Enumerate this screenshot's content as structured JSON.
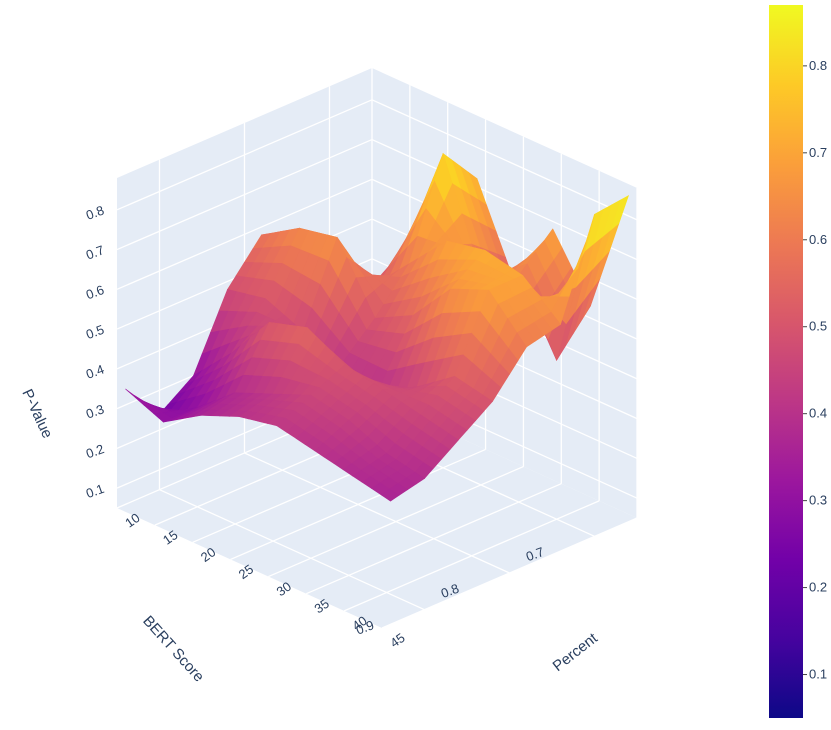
{
  "chart_data": {
    "type": "surface",
    "title": "",
    "colorscale": "plasma",
    "colorscale_stops": [
      "#0d0887",
      "#46039f",
      "#7201a8",
      "#9c179e",
      "#bd3786",
      "#d8576b",
      "#ed7953",
      "#fb9f3a",
      "#fdca26",
      "#f0f921"
    ],
    "axes": {
      "x": {
        "label": "Percent",
        "ticks": [
          "10",
          "15",
          "20",
          "25",
          "30",
          "35",
          "40",
          "45"
        ],
        "range": [
          10,
          45
        ]
      },
      "y": {
        "label": "BERT Score",
        "ticks": [
          "0.7",
          "0.8",
          "0.9"
        ],
        "range": [
          0.65,
          0.95
        ]
      },
      "z": {
        "label": "P-Value",
        "ticks": [
          "0.1",
          "0.2",
          "0.3",
          "0.4",
          "0.5",
          "0.6",
          "0.7",
          "0.8"
        ],
        "range": [
          0.05,
          0.88
        ]
      }
    },
    "colorbar": {
      "ticks": [
        "0.1",
        "0.2",
        "0.3",
        "0.4",
        "0.5",
        "0.6",
        "0.7",
        "0.8"
      ],
      "range": [
        0.05,
        0.87
      ]
    },
    "series": [
      {
        "bert": 0.66,
        "percent": [
          10,
          15,
          20,
          25,
          30,
          35,
          40,
          45
        ],
        "pvalue": [
          0.1,
          0.38,
          0.66,
          0.74,
          0.52,
          0.7,
          0.55,
          0.87
        ]
      },
      {
        "bert": 0.7,
        "percent": [
          10,
          15,
          20,
          25,
          30,
          35,
          40,
          45
        ],
        "pvalue": [
          0.34,
          0.3,
          0.56,
          0.84,
          0.58,
          0.62,
          0.45,
          0.86
        ]
      },
      {
        "bert": 0.74,
        "percent": [
          10,
          15,
          20,
          25,
          30,
          35,
          40,
          45
        ],
        "pvalue": [
          0.4,
          0.42,
          0.5,
          0.6,
          0.7,
          0.72,
          0.7,
          0.62
        ]
      },
      {
        "bert": 0.78,
        "percent": [
          10,
          15,
          20,
          25,
          30,
          35,
          40,
          45
        ],
        "pvalue": [
          0.58,
          0.64,
          0.66,
          0.5,
          0.55,
          0.66,
          0.7,
          0.6
        ]
      },
      {
        "bert": 0.82,
        "percent": [
          10,
          15,
          20,
          25,
          30,
          35,
          40,
          45
        ],
        "pvalue": [
          0.48,
          0.5,
          0.46,
          0.42,
          0.4,
          0.45,
          0.52,
          0.5
        ]
      },
      {
        "bert": 0.86,
        "percent": [
          10,
          15,
          20,
          25,
          30,
          35,
          40,
          45
        ],
        "pvalue": [
          0.3,
          0.4,
          0.52,
          0.55,
          0.5,
          0.48,
          0.46,
          0.44
        ]
      },
      {
        "bert": 0.9,
        "percent": [
          10,
          15,
          20,
          25,
          30,
          35,
          40,
          45
        ],
        "pvalue": [
          0.24,
          0.3,
          0.38,
          0.42,
          0.46,
          0.44,
          0.4,
          0.38
        ]
      },
      {
        "bert": 0.94,
        "percent": [
          10,
          15,
          20,
          25,
          30,
          35,
          40,
          45
        ],
        "pvalue": [
          0.34,
          0.3,
          0.36,
          0.4,
          0.42,
          0.4,
          0.38,
          0.36
        ]
      }
    ]
  }
}
